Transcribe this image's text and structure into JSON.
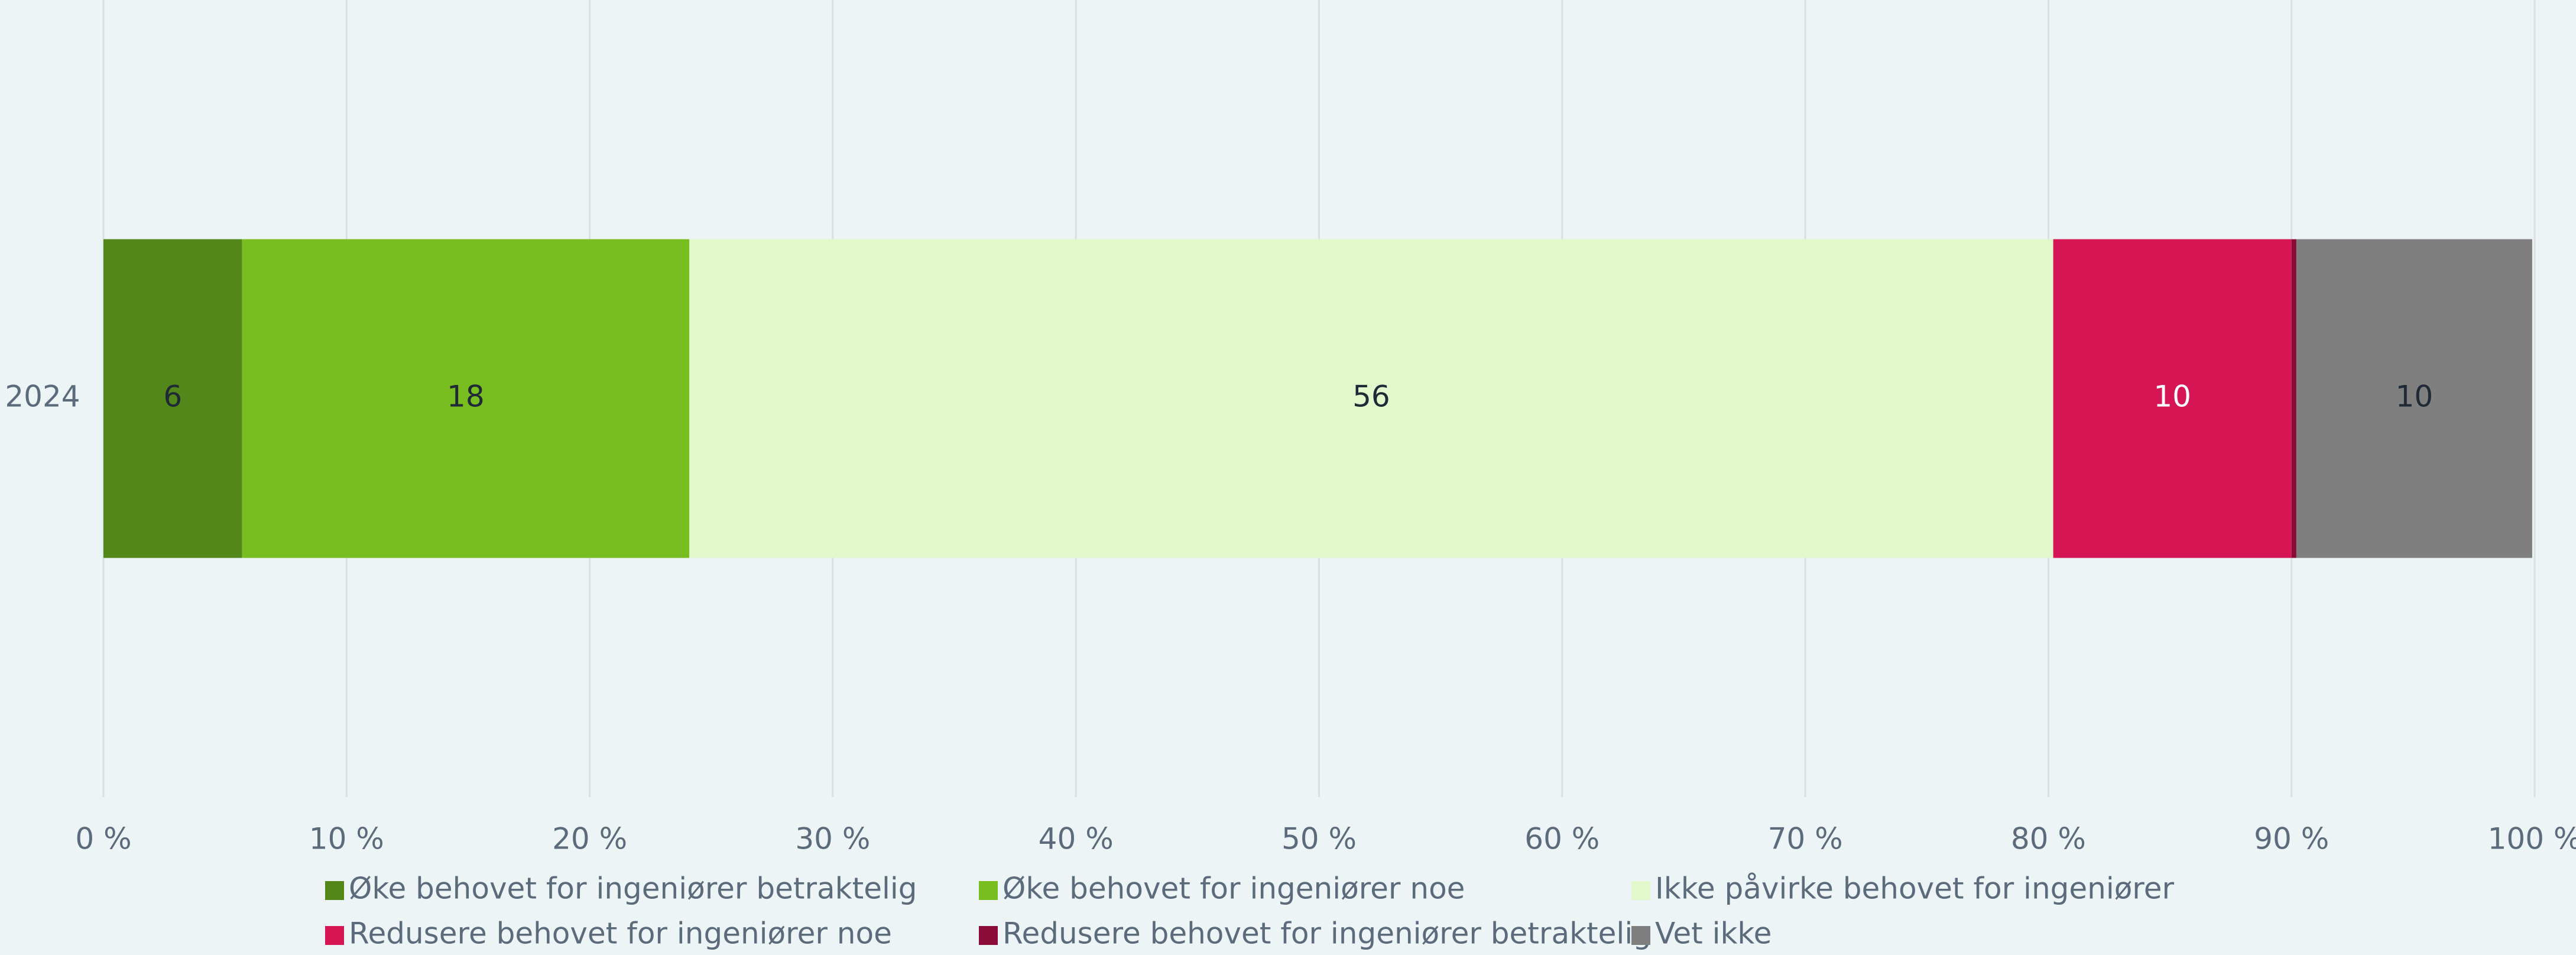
{
  "chart_data": {
    "type": "stacked-bar-horizontal",
    "categories": [
      "2024"
    ],
    "series": [
      {
        "name": "Øke behovet for ingeniører betraktelig",
        "color": "#548719",
        "values": [
          5.7
        ],
        "value_labels": [
          "6"
        ]
      },
      {
        "name": "Øke behovet for ingeniører noe",
        "color": "#78be20",
        "values": [
          18.4
        ],
        "value_labels": [
          "18"
        ]
      },
      {
        "name": "Ikke påvirke behovet for ingeniører",
        "color": "#e3f7cd",
        "values": [
          56.1
        ],
        "value_labels": [
          "56"
        ]
      },
      {
        "name": "Redusere behovet for ingeniører noe",
        "color": "#d51554",
        "values": [
          9.8
        ],
        "value_labels": [
          "10"
        ]
      },
      {
        "name": "Redusere behovet for ingeniører betraktelig",
        "color": "#8a0c36",
        "values": [
          0.2
        ]
      },
      {
        "name": "Vet ikke",
        "color": "#7f7f7f",
        "values": [
          9.7
        ],
        "value_labels": [
          "10"
        ]
      }
    ],
    "xlim": [
      0,
      100
    ],
    "xticks": [
      {
        "value": 0,
        "label": "0 %"
      },
      {
        "value": 10,
        "label": "10 %"
      },
      {
        "value": 20,
        "label": "20 %"
      },
      {
        "value": 30,
        "label": "30 %"
      },
      {
        "value": 40,
        "label": "40 %"
      },
      {
        "value": 50,
        "label": "50 %"
      },
      {
        "value": 60,
        "label": "60 %"
      },
      {
        "value": 70,
        "label": "70 %"
      },
      {
        "value": 80,
        "label": "80 %"
      },
      {
        "value": 90,
        "label": "90 %"
      },
      {
        "value": 100,
        "label": "100 %"
      }
    ],
    "grid": true,
    "legend": "bottom"
  }
}
